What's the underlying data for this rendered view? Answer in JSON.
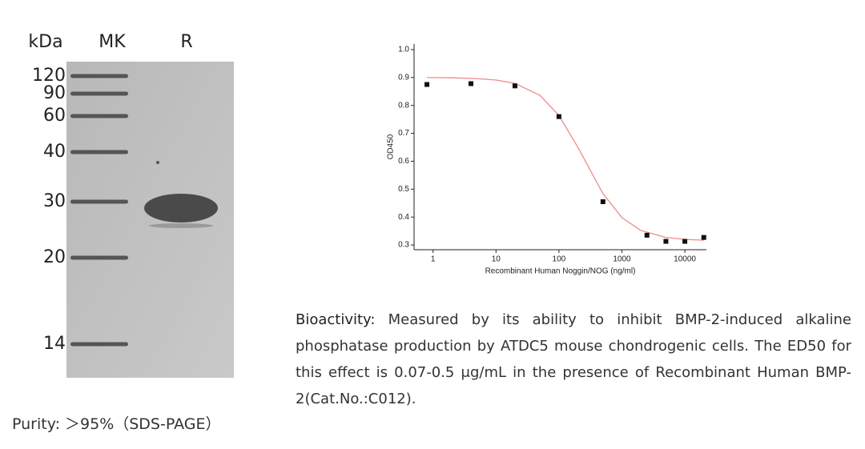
{
  "gel": {
    "headers": [
      "kDa",
      "MK",
      "R"
    ],
    "markers": [
      "120",
      "90",
      "60",
      "40",
      "30",
      "20",
      "14"
    ]
  },
  "purity": {
    "label": "Purity:",
    "value": "＞95%（SDS-PAGE）"
  },
  "chart_data": {
    "type": "scatter",
    "xlabel": "Recombinant Human Noggin/NOG (ng/ml)",
    "ylabel": "OD450",
    "x": [
      0.8,
      4,
      20,
      100,
      500,
      2500,
      5000,
      10000,
      20000
    ],
    "values": [
      0.875,
      0.878,
      0.87,
      0.76,
      0.455,
      0.335,
      0.313,
      0.313,
      0.327
    ],
    "color": "#111111",
    "fit": {
      "x": [
        0.8,
        2,
        5,
        10,
        20,
        50,
        100,
        200,
        500,
        1000,
        2000,
        5000,
        10000,
        20000
      ],
      "values": [
        0.9,
        0.899,
        0.896,
        0.891,
        0.879,
        0.836,
        0.764,
        0.65,
        0.484,
        0.398,
        0.352,
        0.327,
        0.32,
        0.317
      ],
      "color": "#f08a8a"
    },
    "xscale": "log",
    "xlim": [
      0.5,
      22000
    ],
    "xticks": [
      1,
      10,
      100,
      1000,
      10000
    ],
    "ylim": [
      0.283,
      1.02
    ],
    "yticks": [
      0.3,
      0.4,
      0.5,
      0.6,
      0.7,
      0.8,
      0.9,
      {
        "value": 1,
        "label": "1.0"
      }
    ]
  },
  "bioactivity": {
    "label": "Bioactivity:",
    "text": "Measured by its ability to inhibit BMP-2-induced alkaline phosphatase production by ATDC5 mouse chondrogenic cells. The ED50 for this effect is 0.07-0.5 μg/mL in the presence of Recombinant Human BMP-2(Cat.No.:C012)."
  }
}
